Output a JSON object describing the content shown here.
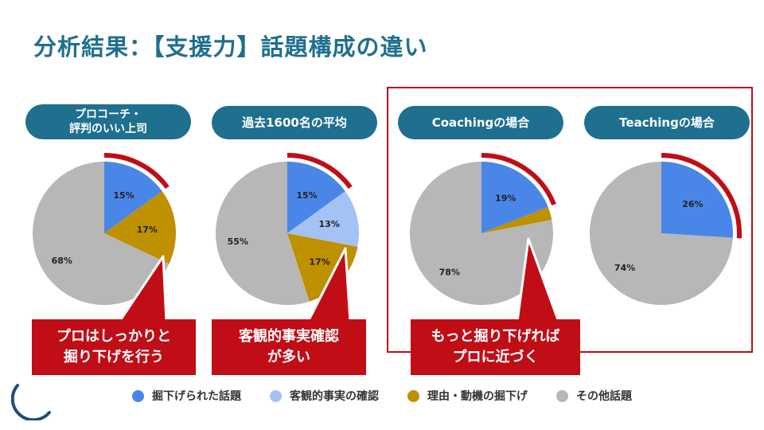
{
  "title": "分析結果：【支援力】話題構成の違い",
  "colors": {
    "blue": "#4a86e8",
    "lightblue": "#a4c2f4",
    "gold": "#bf9000",
    "gray": "#b7b7b7",
    "accent_red": "#c00d16",
    "header_teal": "#1f6f8f"
  },
  "legend": [
    {
      "label": "掘下げられた話題",
      "color": "#4a86e8"
    },
    {
      "label": "客観的事実の確認",
      "color": "#a4c2f4"
    },
    {
      "label": "理由・動機の掘下げ",
      "color": "#bf9000"
    },
    {
      "label": "その他話題",
      "color": "#b7b7b7"
    }
  ],
  "callouts": [
    "プロはしっかりと\n掘り下げを行う",
    "客観的事実確認\nが多い",
    "もっと掘り下げれば\nプロに近づく"
  ],
  "chart_data": [
    {
      "type": "pie",
      "title": "プロコーチ・\n評判のいい上司",
      "categories": [
        "掘下げられた話題",
        "客観的事実の確認",
        "理由・動機の掘下げ",
        "その他話題"
      ],
      "values": [
        15,
        0,
        17,
        68
      ],
      "labels": [
        "15%",
        "",
        "17%",
        "68%"
      ]
    },
    {
      "type": "pie",
      "title": "過去1600名の平均",
      "categories": [
        "掘下げられた話題",
        "客観的事実の確認",
        "理由・動機の掘下げ",
        "その他話題"
      ],
      "values": [
        15,
        13,
        17,
        55
      ],
      "labels": [
        "15%",
        "13%",
        "17%",
        "55%"
      ]
    },
    {
      "type": "pie",
      "title": "Coachingの場合",
      "categories": [
        "掘下げられた話題",
        "客観的事実の確認",
        "理由・動機の掘下げ",
        "その他話題"
      ],
      "values": [
        19,
        0,
        3,
        78
      ],
      "labels": [
        "19%",
        "",
        "",
        "78%"
      ]
    },
    {
      "type": "pie",
      "title": "Teachingの場合",
      "categories": [
        "掘下げられた話題",
        "客観的事実の確認",
        "理由・動機の掘下げ",
        "その他話題"
      ],
      "values": [
        26,
        0,
        0,
        74
      ],
      "labels": [
        "26%",
        "",
        "",
        "74%"
      ]
    }
  ]
}
